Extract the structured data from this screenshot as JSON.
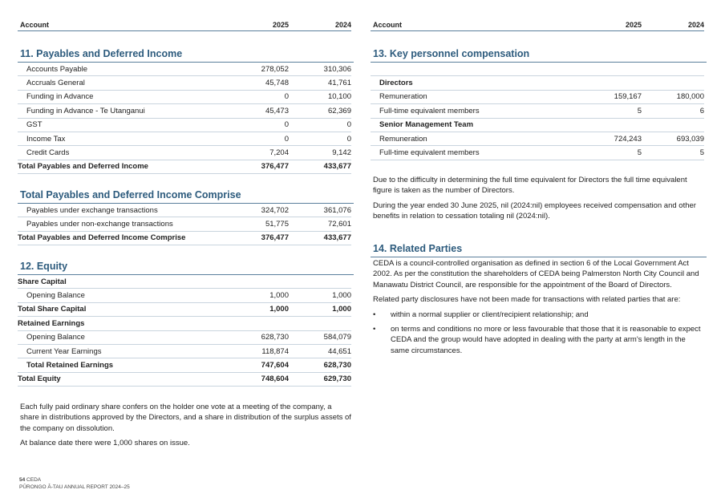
{
  "header": {
    "account": "Account",
    "y1": "2025",
    "y2": "2024"
  },
  "s11": {
    "title": "11. Payables and Deferred Income",
    "rows": [
      {
        "label": "Accounts Payable",
        "v1": "278,052",
        "v2": "310,306"
      },
      {
        "label": "Accruals General",
        "v1": "45,748",
        "v2": "41,761"
      },
      {
        "label": "Funding in Advance",
        "v1": "0",
        "v2": "10,100"
      },
      {
        "label": "Funding in Advance - Te Utanganui",
        "v1": "45,473",
        "v2": "62,369"
      },
      {
        "label": "GST",
        "v1": "0",
        "v2": "0"
      },
      {
        "label": "Income Tax",
        "v1": "0",
        "v2": "0"
      },
      {
        "label": "Credit Cards",
        "v1": "7,204",
        "v2": "9,142"
      }
    ],
    "total": {
      "label": "Total Payables and Deferred Income",
      "v1": "376,477",
      "v2": "433,677"
    }
  },
  "comprise": {
    "title": "Total Payables and Deferred Income Comprise",
    "rows": [
      {
        "label": "Payables under exchange transactions",
        "v1": "324,702",
        "v2": "361,076"
      },
      {
        "label": "Payables under non-exchange transactions",
        "v1": "51,775",
        "v2": "72,601"
      }
    ],
    "total": {
      "label": "Total Payables and Deferred Income Comprise",
      "v1": "376,477",
      "v2": "433,677"
    }
  },
  "s12": {
    "title": "12. Equity",
    "share_capital": "Share Capital",
    "sc_opening": {
      "label": "Opening Balance",
      "v1": "1,000",
      "v2": "1,000"
    },
    "sc_total": {
      "label": "Total Share Capital",
      "v1": "1,000",
      "v2": "1,000"
    },
    "retained": "Retained Earnings",
    "re_opening": {
      "label": "Opening Balance",
      "v1": "628,730",
      "v2": "584,079"
    },
    "re_current": {
      "label": "Current Year Earnings",
      "v1": "118,874",
      "v2": "44,651"
    },
    "re_total": {
      "label": "Total Retained Earnings",
      "v1": "747,604",
      "v2": "628,730"
    },
    "total": {
      "label": "Total Equity",
      "v1": "748,604",
      "v2": "629,730"
    },
    "para1": "Each fully paid ordinary share confers on the holder one vote at a meeting of the company, a share in distributions approved by the Directors, and a share in distribution of the surplus assets of the company on dissolution.",
    "para2": "At balance date there were 1,000 shares on issue."
  },
  "s13": {
    "title": "13. Key personnel compensation",
    "directors": "Directors",
    "d_rem": {
      "label": "Remuneration",
      "v1": "159,167",
      "v2": "180,000"
    },
    "d_fte": {
      "label": "Full-time equivalent members",
      "v1": "5",
      "v2": "6"
    },
    "smt": "Senior Management Team",
    "s_rem": {
      "label": "Remuneration",
      "v1": "724,243",
      "v2": "693,039"
    },
    "s_fte": {
      "label": "Full-time equivalent members",
      "v1": "5",
      "v2": "5"
    },
    "para1": "Due to the difficulty in determining the full time equivalent for Directors the full time equivalent figure is taken as the number of Directors.",
    "para2": "During the year ended 30 June 2025, nil (2024:nil) employees received compensation and other benefits in relation to cessation totaling nil (2024:nil)."
  },
  "s14": {
    "title": "14. Related Parties",
    "para1": "CEDA is a council-controlled organisation as defined in section 6 of the Local Government Act 2002. As per the constitution the shareholders of CEDA being Palmerston North City Council and Manawatu District Council, are responsible for the appointment of the Board of Directors.",
    "para2": "Related party disclosures have not been made for transactions with related parties that are:",
    "bullets": [
      "within a normal supplier or client/recipient relationship; and",
      "on terms and conditions no more or less favourable that those that it is reasonable to expect CEDA and the group would have adopted in dealing with the party at arm's length in the same circumstances."
    ]
  },
  "footer": {
    "page": "54",
    "org": "CEDA",
    "report": "PŪRONGO Ā-TAU ANNUAL REPORT 2024–25"
  }
}
